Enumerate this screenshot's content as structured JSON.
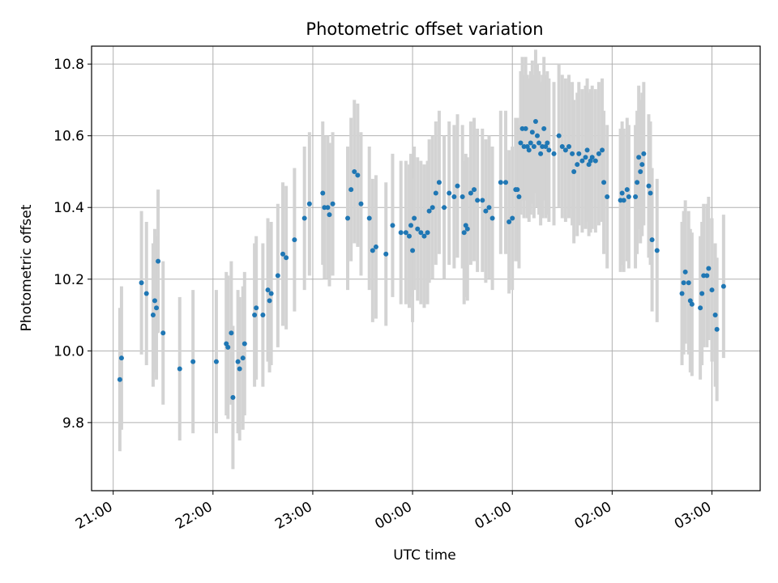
{
  "chart_data": {
    "type": "scatter",
    "title": "Photometric offset variation",
    "xlabel": "UTC time",
    "ylabel": "Photometric offset",
    "x_unit": "UTC time (hours; 21:00 to ~03:30 spanning midnight)",
    "xlim": [
      "20:47",
      "03:29"
    ],
    "ylim": [
      9.61,
      10.85
    ],
    "x_ticks": [
      "21:00",
      "22:00",
      "23:00",
      "00:00",
      "01:00",
      "02:00",
      "03:00"
    ],
    "y_ticks": [
      "9.8",
      "10.0",
      "10.2",
      "10.4",
      "10.6",
      "10.8"
    ],
    "grid": true,
    "legend": "none",
    "colors": {
      "points": "#1f77b4",
      "errorbars": "#d3d3d3",
      "grid": "#b0b0b0"
    },
    "series": [
      {
        "x": [
          "21:04",
          "21:05",
          "21:17",
          "21:20",
          "21:24",
          "21:25",
          "21:26",
          "21:27",
          "21:30",
          "21:40",
          "21:48",
          "22:02",
          "22:08",
          "22:09",
          "22:11",
          "22:12",
          "22:15",
          "22:16",
          "22:18",
          "22:19",
          "22:25",
          "22:26",
          "22:30",
          "22:33",
          "22:34",
          "22:35",
          "22:39",
          "22:42",
          "22:44",
          "22:49",
          "22:55",
          "22:58",
          "23:06",
          "23:07",
          "23:09",
          "23:10",
          "23:12",
          "23:21",
          "23:23",
          "23:25",
          "23:27",
          "23:29",
          "23:34",
          "23:36",
          "23:38",
          "23:44",
          "23:48",
          "23:53",
          "23:56",
          "23:58",
          "23:59",
          "00:00",
          "00:01",
          "00:03",
          "00:05",
          "00:07",
          "00:09",
          "00:10",
          "00:12",
          "00:14",
          "00:16",
          "00:19",
          "00:22",
          "00:25",
          "00:27",
          "00:30",
          "00:31",
          "00:32",
          "00:33",
          "00:35",
          "00:37",
          "00:39",
          "00:42",
          "00:44",
          "00:46",
          "00:48",
          "00:53",
          "00:56",
          "00:58",
          "01:00",
          "01:02",
          "01:03",
          "01:04",
          "01:05",
          "01:06",
          "01:07",
          "01:08",
          "01:09",
          "01:10",
          "01:11",
          "01:12",
          "01:13",
          "01:14",
          "01:15",
          "01:16",
          "01:17",
          "01:18",
          "01:19",
          "01:20",
          "01:21",
          "01:22",
          "01:25",
          "01:28",
          "01:30",
          "01:32",
          "01:34",
          "01:36",
          "01:37",
          "01:39",
          "01:40",
          "01:42",
          "01:44",
          "01:45",
          "01:46",
          "01:47",
          "01:48",
          "01:50",
          "01:52",
          "01:54",
          "01:55",
          "01:57",
          "02:05",
          "02:06",
          "02:07",
          "02:09",
          "02:10",
          "02:14",
          "02:15",
          "02:16",
          "02:17",
          "02:18",
          "02:19",
          "02:22",
          "02:23",
          "02:24",
          "02:27",
          "02:42",
          "02:43",
          "02:44",
          "02:46",
          "02:47",
          "02:48",
          "02:53",
          "02:54",
          "02:55",
          "02:57",
          "02:58",
          "03:00",
          "03:02",
          "03:03",
          "03:07"
        ],
        "y": [
          9.92,
          9.98,
          10.19,
          10.16,
          10.1,
          10.14,
          10.12,
          10.25,
          10.05,
          9.95,
          9.97,
          9.97,
          10.02,
          10.01,
          10.05,
          9.87,
          9.97,
          9.95,
          9.98,
          10.02,
          10.1,
          10.12,
          10.1,
          10.17,
          10.14,
          10.16,
          10.21,
          10.27,
          10.26,
          10.31,
          10.37,
          10.41,
          10.44,
          10.4,
          10.4,
          10.38,
          10.41,
          10.37,
          10.45,
          10.5,
          10.49,
          10.41,
          10.37,
          10.28,
          10.29,
          10.27,
          10.35,
          10.33,
          10.33,
          10.32,
          10.35,
          10.28,
          10.37,
          10.34,
          10.33,
          10.32,
          10.33,
          10.39,
          10.4,
          10.44,
          10.47,
          10.4,
          10.44,
          10.43,
          10.46,
          10.43,
          10.33,
          10.35,
          10.34,
          10.44,
          10.45,
          10.42,
          10.42,
          10.39,
          10.4,
          10.37,
          10.47,
          10.47,
          10.36,
          10.37,
          10.45,
          10.45,
          10.43,
          10.58,
          10.62,
          10.57,
          10.62,
          10.57,
          10.56,
          10.58,
          10.61,
          10.57,
          10.64,
          10.6,
          10.58,
          10.55,
          10.57,
          10.62,
          10.57,
          10.58,
          10.56,
          10.55,
          10.6,
          10.57,
          10.56,
          10.57,
          10.55,
          10.5,
          10.52,
          10.55,
          10.53,
          10.54,
          10.56,
          10.52,
          10.53,
          10.54,
          10.53,
          10.55,
          10.56,
          10.47,
          10.43,
          10.42,
          10.44,
          10.42,
          10.45,
          10.43,
          10.43,
          10.47,
          10.54,
          10.5,
          10.52,
          10.55,
          10.46,
          10.44,
          10.31,
          10.28,
          10.16,
          10.19,
          10.22,
          10.19,
          10.14,
          10.13,
          10.12,
          10.16,
          10.21,
          10.21,
          10.23,
          10.17,
          10.1,
          10.06,
          10.18
        ],
        "yerr": 0.2
      }
    ]
  }
}
